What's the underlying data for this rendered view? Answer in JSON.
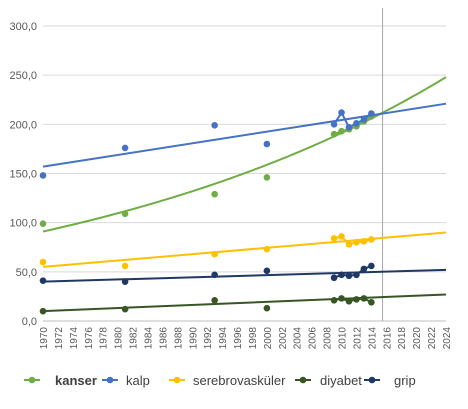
{
  "chart_data": {
    "type": "scatter",
    "title": "",
    "xlabel": "",
    "ylabel": "",
    "ylim": [
      0,
      300
    ],
    "xlim": [
      1970,
      2024
    ],
    "y_ticks": [
      "0,0",
      "50,0",
      "100,0",
      "150,0",
      "200,0",
      "250,0",
      "300,0"
    ],
    "x_ticks": [
      "1970",
      "1972",
      "1974",
      "1976",
      "1978",
      "1980",
      "1982",
      "1984",
      "1986",
      "1988",
      "1990",
      "1992",
      "1994",
      "1996",
      "1998",
      "2000",
      "2002",
      "2004",
      "2006",
      "2008",
      "2010",
      "2012",
      "2014",
      "2016",
      "2018",
      "2020",
      "2022",
      "2024"
    ],
    "reference_line_x": 2015.5,
    "grid": "horizontal",
    "legend_position": "bottom",
    "series": [
      {
        "name": "kanser",
        "color": "#70ad47",
        "bold_label": true,
        "trend": "exponential",
        "trend_points": [
          [
            1970,
            91
          ],
          [
            1980,
            108
          ],
          [
            1990,
            128
          ],
          [
            2000,
            153
          ],
          [
            2010,
            185
          ],
          [
            2024,
            248
          ]
        ],
        "points": [
          [
            1970,
            99
          ],
          [
            1981,
            109
          ],
          [
            1993,
            129
          ],
          [
            2000,
            146
          ],
          [
            2009,
            190
          ],
          [
            2010,
            193
          ],
          [
            2011,
            195
          ],
          [
            2012,
            198
          ],
          [
            2013,
            203
          ],
          [
            2014,
            208
          ]
        ]
      },
      {
        "name": "kalp",
        "color": "#4472c4",
        "bold_label": false,
        "trend": "linear",
        "trend_points": [
          [
            1970,
            157
          ],
          [
            2024,
            221
          ]
        ],
        "points": [
          [
            1970,
            148
          ],
          [
            1981,
            176
          ],
          [
            1993,
            199
          ],
          [
            2000,
            180
          ],
          [
            2009,
            200
          ],
          [
            2010,
            212
          ],
          [
            2011,
            197
          ],
          [
            2012,
            201
          ],
          [
            2013,
            205
          ],
          [
            2014,
            211
          ]
        ]
      },
      {
        "name": "serebrovasküler",
        "color": "#ffc000",
        "bold_label": false,
        "trend": "linear",
        "trend_points": [
          [
            1970,
            55
          ],
          [
            2024,
            90
          ]
        ],
        "points": [
          [
            1970,
            60
          ],
          [
            1981,
            56
          ],
          [
            1993,
            68
          ],
          [
            2000,
            73
          ],
          [
            2009,
            84
          ],
          [
            2010,
            86
          ],
          [
            2011,
            78
          ],
          [
            2012,
            80
          ],
          [
            2013,
            81
          ],
          [
            2014,
            83
          ]
        ]
      },
      {
        "name": "diyabet",
        "color": "#375623",
        "bold_label": false,
        "trend": "linear",
        "trend_points": [
          [
            1970,
            10
          ],
          [
            2024,
            27
          ]
        ],
        "points": [
          [
            1970,
            10
          ],
          [
            1981,
            12
          ],
          [
            1993,
            21
          ],
          [
            2000,
            13
          ],
          [
            2009,
            21
          ],
          [
            2010,
            23
          ],
          [
            2011,
            20
          ],
          [
            2012,
            22
          ],
          [
            2013,
            23
          ],
          [
            2014,
            19
          ]
        ]
      },
      {
        "name": "grip",
        "color": "#203864",
        "bold_label": false,
        "trend": "linear",
        "trend_points": [
          [
            1970,
            40
          ],
          [
            2024,
            52
          ]
        ],
        "points": [
          [
            1970,
            41
          ],
          [
            1981,
            40
          ],
          [
            1993,
            47
          ],
          [
            2000,
            51
          ],
          [
            2009,
            44
          ],
          [
            2010,
            47
          ],
          [
            2011,
            46
          ],
          [
            2012,
            47
          ],
          [
            2013,
            53
          ],
          [
            2014,
            56
          ]
        ]
      }
    ]
  }
}
